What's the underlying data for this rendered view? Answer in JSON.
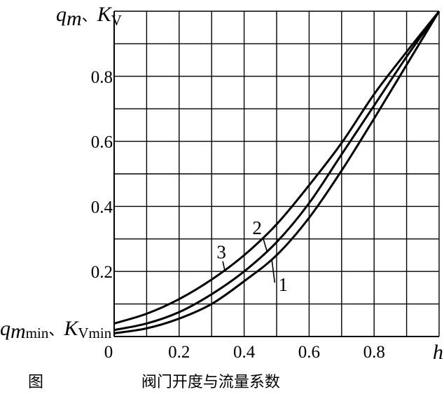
{
  "chart_data": {
    "type": "line",
    "title": "",
    "xlabel": "h",
    "ylabel": {
      "q": "q",
      "q_sub": "m",
      "sep": "、",
      "k": "K",
      "k_sub": "V"
    },
    "y0_label": {
      "q": "q",
      "q_sub": "m",
      "q_sub2": "min",
      "sep": "、",
      "k": "K",
      "k_sub": "Vmin"
    },
    "xlim": [
      0,
      1
    ],
    "ylim": [
      0,
      1
    ],
    "grid": true,
    "x_ticks": [
      {
        "v": 0,
        "label": "0"
      },
      {
        "v": 0.2,
        "label": "0.2"
      },
      {
        "v": 0.4,
        "label": "0.4"
      },
      {
        "v": 0.6,
        "label": "0.6"
      },
      {
        "v": 0.8,
        "label": "0.8"
      }
    ],
    "y_ticks": [
      {
        "v": 0.2,
        "label": "0.2"
      },
      {
        "v": 0.4,
        "label": "0.4"
      },
      {
        "v": 0.6,
        "label": "0.6"
      },
      {
        "v": 0.8,
        "label": "0.8"
      }
    ],
    "x": [
      0,
      0.1,
      0.2,
      0.3,
      0.4,
      0.5,
      0.6,
      0.7,
      0.8,
      0.9,
      1.0
    ],
    "series": [
      {
        "name": "1",
        "values": [
          0.01,
          0.025,
          0.055,
          0.1,
          0.17,
          0.25,
          0.365,
          0.51,
          0.67,
          0.835,
          1.0
        ]
      },
      {
        "name": "2",
        "values": [
          0.02,
          0.04,
          0.075,
          0.13,
          0.2,
          0.29,
          0.41,
          0.56,
          0.71,
          0.86,
          1.0
        ]
      },
      {
        "name": "3",
        "values": [
          0.04,
          0.07,
          0.115,
          0.175,
          0.25,
          0.345,
          0.465,
          0.595,
          0.745,
          0.875,
          1.0
        ]
      }
    ],
    "curve_labels": [
      {
        "series": "1",
        "text": "1",
        "x": 0.52,
        "y": 0.14
      },
      {
        "series": "2",
        "text": "2",
        "x": 0.44,
        "y": 0.315
      },
      {
        "series": "3",
        "text": "3",
        "x": 0.33,
        "y": 0.24
      }
    ],
    "caption": "图                    阀门开度与流量系数"
  }
}
